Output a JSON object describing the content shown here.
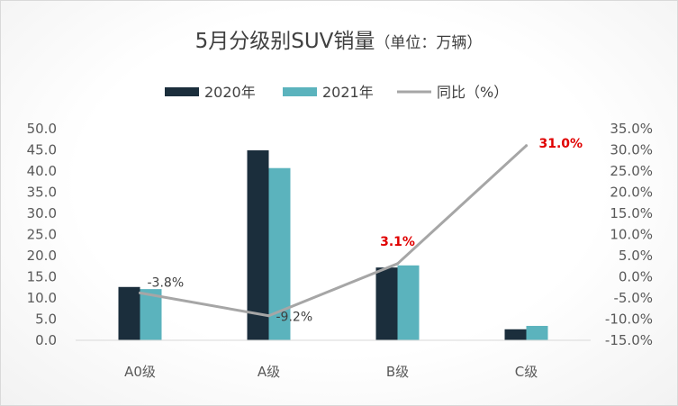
{
  "chart_data": {
    "type": "bar",
    "title": "5月分级别SUV销量",
    "subtitle": "（单位：万辆）",
    "categories": [
      "A0级",
      "A级",
      "B级",
      "C级"
    ],
    "series": [
      {
        "name": "2020年",
        "kind": "bar",
        "axis": "left",
        "color": "#1b2e3c",
        "values": [
          12.6,
          44.9,
          17.2,
          2.6
        ]
      },
      {
        "name": "2021年",
        "kind": "bar",
        "axis": "left",
        "color": "#5bb3bd",
        "values": [
          12.1,
          40.7,
          17.7,
          3.4
        ]
      },
      {
        "name": "同比（%）",
        "kind": "line",
        "axis": "right",
        "color": "#a6a6a6",
        "values": [
          -3.8,
          -9.2,
          3.1,
          31.0
        ]
      }
    ],
    "data_labels": [
      {
        "text": "-3.8%",
        "color": "#404040"
      },
      {
        "text": "-9.2%",
        "color": "#404040"
      },
      {
        "text": "3.1%",
        "color": "#e00000"
      },
      {
        "text": "31.0%",
        "color": "#e00000"
      }
    ],
    "left_axis": {
      "min": 0,
      "max": 50,
      "step": 5,
      "tick_labels": [
        "0.0",
        "5.0",
        "10.0",
        "15.0",
        "20.0",
        "25.0",
        "30.0",
        "35.0",
        "40.0",
        "45.0",
        "50.0"
      ]
    },
    "right_axis": {
      "min": -15,
      "max": 35,
      "step": 5,
      "tick_labels": [
        "-15.0%",
        "-10.0%",
        "-5.0%",
        "0.0%",
        "5.0%",
        "10.0%",
        "15.0%",
        "20.0%",
        "25.0%",
        "30.0%",
        "35.0%"
      ]
    },
    "grid": false,
    "legend_position": "top-center"
  }
}
